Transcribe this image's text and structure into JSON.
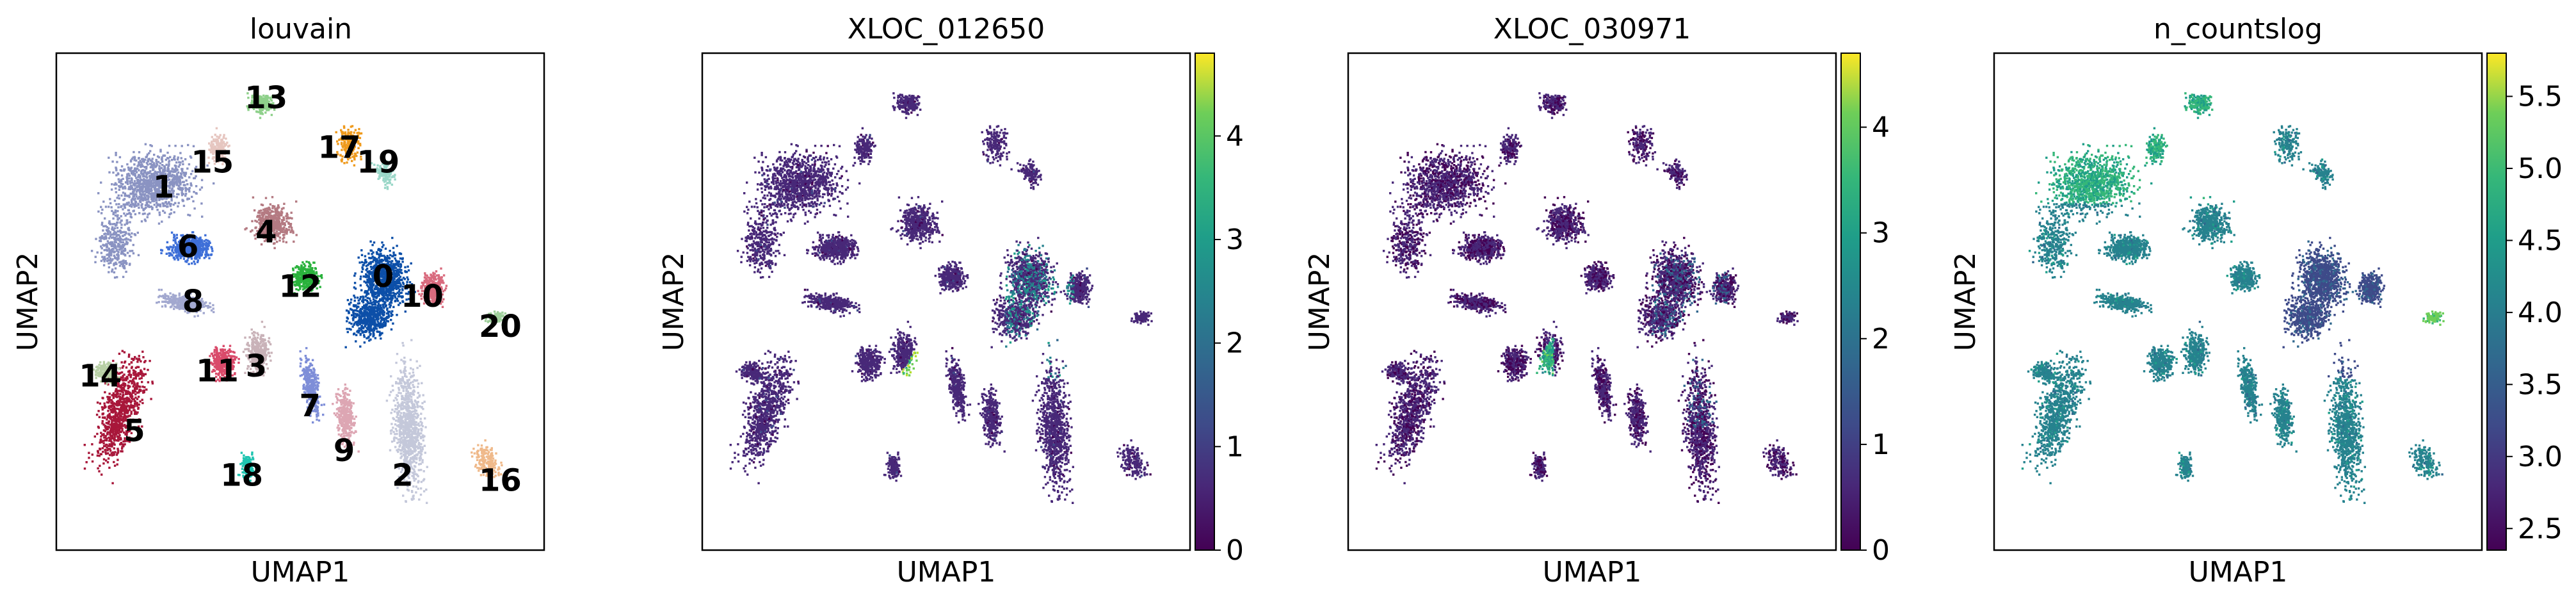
{
  "chart_data": [
    {
      "type": "scatter",
      "title": "louvain",
      "xlabel": "UMAP1",
      "ylabel": "UMAP2",
      "color_mode": "categorical",
      "clusters": [
        {
          "label": "0",
          "color": "#0c4fa8",
          "label_x": 0.67,
          "label_y": 0.55
        },
        {
          "label": "1",
          "color": "#8a93c2",
          "label_x": 0.22,
          "label_y": 0.73
        },
        {
          "label": "2",
          "color": "#c4c8da",
          "label_x": 0.71,
          "label_y": 0.15
        },
        {
          "label": "3",
          "color": "#c9b2b8",
          "label_x": 0.41,
          "label_y": 0.37
        },
        {
          "label": "4",
          "color": "#b47a82",
          "label_x": 0.43,
          "label_y": 0.64
        },
        {
          "label": "5",
          "color": "#a8173a",
          "label_x": 0.16,
          "label_y": 0.24
        },
        {
          "label": "6",
          "color": "#3e6fd8",
          "label_x": 0.27,
          "label_y": 0.61
        },
        {
          "label": "7",
          "color": "#7e8ed8",
          "label_x": 0.52,
          "label_y": 0.29
        },
        {
          "label": "8",
          "color": "#a2a8cf",
          "label_x": 0.28,
          "label_y": 0.5
        },
        {
          "label": "9",
          "color": "#dda6b3",
          "label_x": 0.59,
          "label_y": 0.2
        },
        {
          "label": "10",
          "color": "#d96b7e",
          "label_x": 0.75,
          "label_y": 0.51
        },
        {
          "label": "11",
          "color": "#d94a6a",
          "label_x": 0.33,
          "label_y": 0.36
        },
        {
          "label": "12",
          "color": "#2ab23c",
          "label_x": 0.5,
          "label_y": 0.53
        },
        {
          "label": "13",
          "color": "#8ed08a",
          "label_x": 0.43,
          "label_y": 0.91
        },
        {
          "label": "14",
          "color": "#b7cfa5",
          "label_x": 0.09,
          "label_y": 0.35
        },
        {
          "label": "15",
          "color": "#e6c6c0",
          "label_x": 0.32,
          "label_y": 0.78
        },
        {
          "label": "16",
          "color": "#efb98a",
          "label_x": 0.91,
          "label_y": 0.14
        },
        {
          "label": "17",
          "color": "#ef9a1c",
          "label_x": 0.58,
          "label_y": 0.81
        },
        {
          "label": "18",
          "color": "#1fc4b0",
          "label_x": 0.38,
          "label_y": 0.15
        },
        {
          "label": "19",
          "color": "#9ad7c8",
          "label_x": 0.66,
          "label_y": 0.78
        },
        {
          "label": "20",
          "color": "#9ecf9b",
          "label_x": 0.91,
          "label_y": 0.45
        }
      ]
    },
    {
      "type": "scatter",
      "title": "XLOC_012650",
      "xlabel": "UMAP1",
      "ylabel": "UMAP2",
      "color_mode": "continuous",
      "colormap": "viridis",
      "colorbar": {
        "min": 0,
        "max": 4.8,
        "ticks": [
          "0",
          "1",
          "2",
          "3",
          "4"
        ],
        "tick_values": [
          0,
          1,
          2,
          3,
          4
        ]
      }
    },
    {
      "type": "scatter",
      "title": "XLOC_030971",
      "xlabel": "UMAP1",
      "ylabel": "UMAP2",
      "color_mode": "continuous",
      "colormap": "viridis",
      "colorbar": {
        "min": 0,
        "max": 4.7,
        "ticks": [
          "0",
          "1",
          "2",
          "3",
          "4"
        ],
        "tick_values": [
          0,
          1,
          2,
          3,
          4
        ]
      }
    },
    {
      "type": "scatter",
      "title": "n_countslog",
      "xlabel": "UMAP1",
      "ylabel": "UMAP2",
      "color_mode": "continuous",
      "colormap": "viridis",
      "colorbar": {
        "min": 2.35,
        "max": 5.8,
        "ticks": [
          "2.5",
          "3.0",
          "3.5",
          "4.0",
          "4.5",
          "5.0",
          "5.5"
        ],
        "tick_values": [
          2.5,
          3.0,
          3.5,
          4.0,
          4.5,
          5.0,
          5.5
        ]
      }
    }
  ]
}
